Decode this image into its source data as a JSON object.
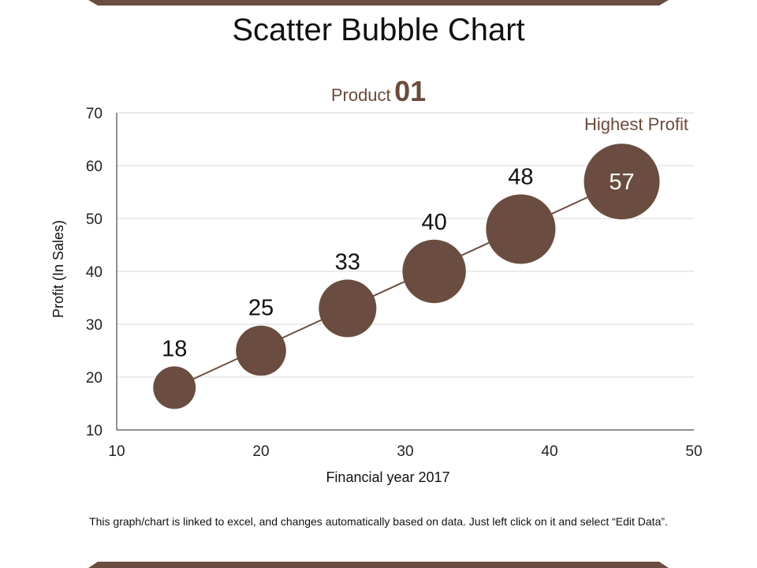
{
  "title": "Scatter Bubble Chart",
  "subtitle": {
    "text": "Product",
    "number": "01"
  },
  "footnote": "This graph/chart is linked to excel, and changes automatically based on data. Just left click on it and select “Edit Data”.",
  "colors": {
    "bubble": "#6a4d40",
    "band": "#6a4d40",
    "annotation": "#6b4a3c",
    "grid": "#d9d9d9",
    "axis": "#222222"
  },
  "chart_data": {
    "type": "scatter",
    "subtype": "bubble",
    "title": "Scatter Bubble Chart",
    "xlabel": "Financial year  2017",
    "ylabel": "Profit  (In Sales)",
    "xlim": [
      10,
      50
    ],
    "ylim": [
      10,
      70
    ],
    "xticks": [
      10,
      20,
      30,
      40,
      50
    ],
    "yticks": [
      10,
      20,
      30,
      40,
      50,
      60,
      70
    ],
    "grid": "horizontal",
    "trendline": true,
    "annotation": "Highest Profit",
    "series": [
      {
        "name": "Product 01",
        "x": [
          14,
          20,
          26,
          32,
          38,
          45
        ],
        "y": [
          18,
          25,
          33,
          40,
          48,
          57
        ],
        "size": [
          18,
          25,
          33,
          40,
          48,
          57
        ],
        "labels": [
          "18",
          "25",
          "33",
          "40",
          "48",
          "57"
        ]
      }
    ]
  }
}
